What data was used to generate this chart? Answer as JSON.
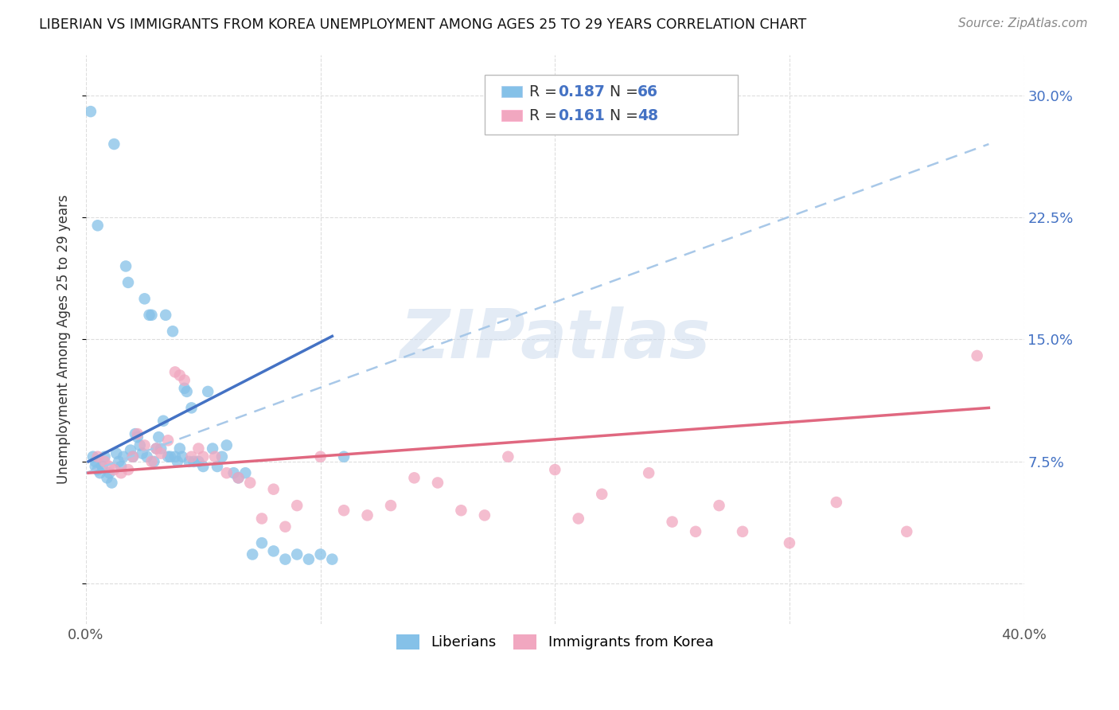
{
  "title": "LIBERIAN VS IMMIGRANTS FROM KOREA UNEMPLOYMENT AMONG AGES 25 TO 29 YEARS CORRELATION CHART",
  "source": "Source: ZipAtlas.com",
  "ylabel": "Unemployment Among Ages 25 to 29 years",
  "xlim": [
    0.0,
    0.4
  ],
  "ylim": [
    -0.025,
    0.325
  ],
  "color_blue": "#85C1E8",
  "color_pink": "#F1A7C0",
  "line_blue": "#4472C4",
  "line_pink": "#E06880",
  "line_dashed": "#A8C8E8",
  "watermark": "ZIPatlas",
  "liberian_x": [
    0.002,
    0.003,
    0.004,
    0.004,
    0.005,
    0.005,
    0.006,
    0.007,
    0.008,
    0.009,
    0.01,
    0.011,
    0.012,
    0.013,
    0.014,
    0.015,
    0.016,
    0.017,
    0.018,
    0.019,
    0.02,
    0.021,
    0.022,
    0.023,
    0.024,
    0.025,
    0.026,
    0.027,
    0.028,
    0.029,
    0.03,
    0.031,
    0.032,
    0.033,
    0.034,
    0.035,
    0.036,
    0.037,
    0.038,
    0.039,
    0.04,
    0.041,
    0.042,
    0.043,
    0.044,
    0.045,
    0.046,
    0.048,
    0.05,
    0.052,
    0.054,
    0.056,
    0.058,
    0.06,
    0.063,
    0.065,
    0.068,
    0.071,
    0.075,
    0.08,
    0.085,
    0.09,
    0.095,
    0.1,
    0.105,
    0.11
  ],
  "liberian_y": [
    0.29,
    0.078,
    0.075,
    0.072,
    0.22,
    0.07,
    0.068,
    0.072,
    0.078,
    0.065,
    0.068,
    0.062,
    0.27,
    0.08,
    0.075,
    0.072,
    0.078,
    0.195,
    0.185,
    0.082,
    0.078,
    0.092,
    0.09,
    0.085,
    0.08,
    0.175,
    0.078,
    0.165,
    0.165,
    0.075,
    0.083,
    0.09,
    0.083,
    0.1,
    0.165,
    0.078,
    0.078,
    0.155,
    0.078,
    0.075,
    0.083,
    0.078,
    0.12,
    0.118,
    0.075,
    0.108,
    0.075,
    0.075,
    0.072,
    0.118,
    0.083,
    0.072,
    0.078,
    0.085,
    0.068,
    0.065,
    0.068,
    0.018,
    0.025,
    0.02,
    0.015,
    0.018,
    0.015,
    0.018,
    0.015,
    0.078
  ],
  "korea_x": [
    0.005,
    0.008,
    0.01,
    0.012,
    0.015,
    0.018,
    0.02,
    0.022,
    0.025,
    0.028,
    0.03,
    0.032,
    0.035,
    0.038,
    0.04,
    0.042,
    0.045,
    0.048,
    0.05,
    0.055,
    0.06,
    0.065,
    0.07,
    0.075,
    0.08,
    0.085,
    0.09,
    0.1,
    0.11,
    0.12,
    0.13,
    0.14,
    0.15,
    0.16,
    0.17,
    0.18,
    0.2,
    0.21,
    0.22,
    0.24,
    0.25,
    0.26,
    0.27,
    0.28,
    0.3,
    0.32,
    0.35,
    0.38
  ],
  "korea_y": [
    0.078,
    0.075,
    0.072,
    0.07,
    0.068,
    0.07,
    0.078,
    0.092,
    0.085,
    0.075,
    0.083,
    0.08,
    0.088,
    0.13,
    0.128,
    0.125,
    0.078,
    0.083,
    0.078,
    0.078,
    0.068,
    0.065,
    0.062,
    0.04,
    0.058,
    0.035,
    0.048,
    0.078,
    0.045,
    0.042,
    0.048,
    0.065,
    0.062,
    0.045,
    0.042,
    0.078,
    0.07,
    0.04,
    0.055,
    0.068,
    0.038,
    0.032,
    0.048,
    0.032,
    0.025,
    0.05,
    0.032,
    0.14
  ],
  "blue_trendline_x": [
    0.001,
    0.105
  ],
  "blue_trendline_y": [
    0.075,
    0.152
  ],
  "pink_trendline_x": [
    0.001,
    0.385
  ],
  "pink_trendline_y": [
    0.068,
    0.108
  ],
  "dashed_trendline_x": [
    0.0,
    0.385
  ],
  "dashed_trendline_y": [
    0.068,
    0.27
  ],
  "background_color": "#FFFFFF",
  "grid_color": "#DDDDDD",
  "ytick_positions": [
    0.0,
    0.075,
    0.15,
    0.225,
    0.3
  ],
  "ytick_labels": [
    "",
    "7.5%",
    "15.0%",
    "22.5%",
    "30.0%"
  ],
  "xtick_positions": [
    0.0,
    0.1,
    0.2,
    0.3,
    0.4
  ],
  "xtick_labels": [
    "0.0%",
    "",
    "",
    "",
    "40.0%"
  ]
}
